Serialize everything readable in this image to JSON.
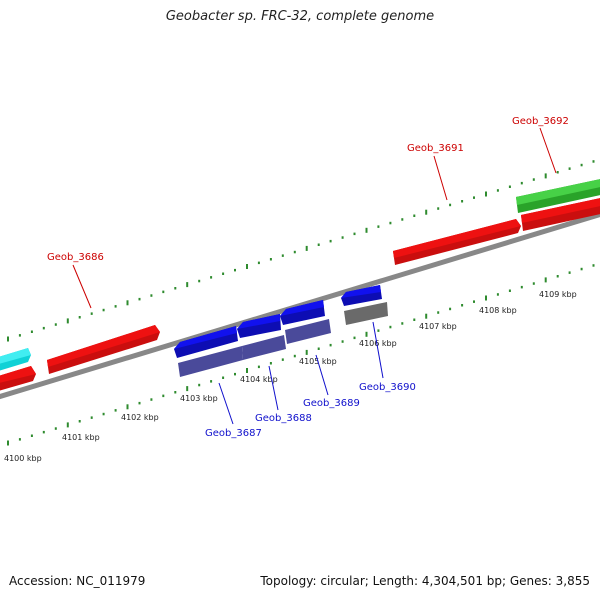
{
  "title": "Geobacter sp. FRC-32, complete genome",
  "footer": {
    "accession": "Accession: NC_011979",
    "summary": "Topology: circular; Length: 4,304,501 bp; Genes: 3,855"
  },
  "colors": {
    "backbone": "#888888",
    "tick": "#2e8b2e",
    "red_gene": "#ee1111",
    "green_gene": "#33cc33",
    "cyan_gene": "#11e8ee",
    "blue_gene": "#1111ee",
    "purple_gene": "#4a4a9a",
    "gray_gene": "#6a6a6a",
    "label_red": "#cc0000",
    "label_blue": "#1010cc"
  },
  "axis_labels": [
    "4100 kbp",
    "4101 kbp",
    "4102 kbp",
    "4103 kbp",
    "4104 kbp",
    "4105 kbp",
    "4106 kbp",
    "4107 kbp",
    "4108 kbp",
    "4109 kbp"
  ],
  "gene_labels": {
    "geob_3686": "Geob_3686",
    "geob_3687": "Geob_3687",
    "geob_3688": "Geob_3688",
    "geob_3689": "Geob_3689",
    "geob_3690": "Geob_3690",
    "geob_3691": "Geob_3691",
    "geob_3692": "Geob_3692"
  }
}
